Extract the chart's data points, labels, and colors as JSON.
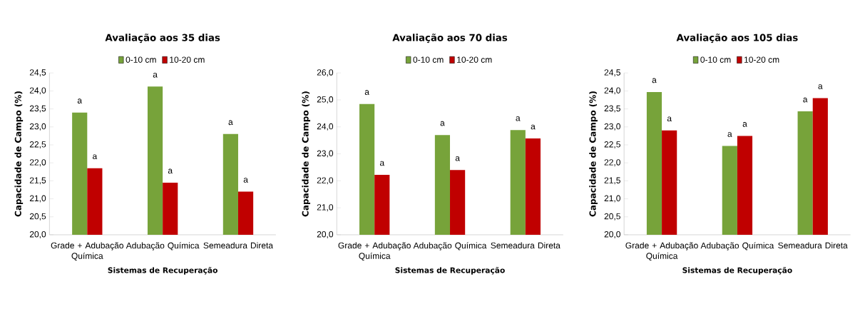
{
  "chart_data": [
    {
      "type": "bar",
      "title": "Avaliação aos 35 dias",
      "xlabel": "Sistemas de Recuperação",
      "ylabel": "Capacidade de Campo (%)",
      "categories": [
        "Grade + Adubação Química",
        "Adubação Química",
        "Semeadura Direta"
      ],
      "series": [
        {
          "name": "0-10 cm",
          "color": "#77a33a",
          "values": [
            23.4,
            24.12,
            22.8
          ],
          "value_labels": [
            "a",
            "a",
            "a"
          ]
        },
        {
          "name": "10-20 cm",
          "color": "#c00000",
          "values": [
            21.85,
            21.45,
            21.2
          ],
          "value_labels": [
            "a",
            "a",
            "a"
          ]
        }
      ],
      "ylim": [
        20,
        24.5
      ],
      "yticks": [
        {
          "value": 20,
          "label": "20,0"
        },
        {
          "value": 20.5,
          "label": "20,5"
        },
        {
          "value": 21,
          "label": "21,0"
        },
        {
          "value": 21.5,
          "label": "21,5"
        },
        {
          "value": 22,
          "label": "22,0"
        },
        {
          "value": 22.5,
          "label": "22,5"
        },
        {
          "value": 23,
          "label": "23,0"
        },
        {
          "value": 23.5,
          "label": "23,5"
        },
        {
          "value": 24,
          "label": "24,0"
        },
        {
          "value": 24.5,
          "label": "24,5"
        }
      ],
      "legend": "top",
      "grid": false
    },
    {
      "type": "bar",
      "title": "Avaliação aos 70 dias",
      "xlabel": "Sistemas de Recuperação",
      "ylabel": "Capacidade de Campo (%)",
      "categories": [
        "Grade + Adubação Química",
        "Adubação Química",
        "Semeadura Direta"
      ],
      "series": [
        {
          "name": "0-10 cm",
          "color": "#77a33a",
          "values": [
            24.85,
            23.7,
            23.88
          ],
          "value_labels": [
            "a",
            "a",
            "a"
          ]
        },
        {
          "name": "10-20 cm",
          "color": "#c00000",
          "values": [
            22.22,
            22.4,
            23.57
          ],
          "value_labels": [
            "a",
            "a",
            "a"
          ]
        }
      ],
      "ylim": [
        20,
        26
      ],
      "yticks": [
        {
          "value": 20,
          "label": "20,0"
        },
        {
          "value": 21,
          "label": "21,0"
        },
        {
          "value": 22,
          "label": "22,0"
        },
        {
          "value": 23,
          "label": "23,0"
        },
        {
          "value": 24,
          "label": "24,0"
        },
        {
          "value": 25,
          "label": "25,0"
        },
        {
          "value": 26,
          "label": "26,0"
        }
      ],
      "legend": "top",
      "grid": false
    },
    {
      "type": "bar",
      "title": "Avaliação aos 105 dias",
      "xlabel": "Sistemas de Recuperação",
      "ylabel": "Capacidade de Campo (%)",
      "categories": [
        "Grade + Adubação Química",
        "Adubação Química",
        "Semeadura Direta"
      ],
      "series": [
        {
          "name": "0-10 cm",
          "color": "#77a33a",
          "values": [
            23.97,
            22.47,
            23.43
          ],
          "value_labels": [
            "a",
            "a",
            "a"
          ]
        },
        {
          "name": "10-20 cm",
          "color": "#c00000",
          "values": [
            22.9,
            22.75,
            23.8
          ],
          "value_labels": [
            "a",
            "a",
            "a"
          ]
        }
      ],
      "ylim": [
        20,
        24.5
      ],
      "yticks": [
        {
          "value": 20,
          "label": "20,0"
        },
        {
          "value": 20.5,
          "label": "20,5"
        },
        {
          "value": 21,
          "label": "21,0"
        },
        {
          "value": 21.5,
          "label": "21,5"
        },
        {
          "value": 22,
          "label": "22,0"
        },
        {
          "value": 22.5,
          "label": "22,5"
        },
        {
          "value": 23,
          "label": "23,0"
        },
        {
          "value": 23.5,
          "label": "23,5"
        },
        {
          "value": 24,
          "label": "24,0"
        },
        {
          "value": 24.5,
          "label": "24,5"
        }
      ],
      "legend": "top",
      "grid": false
    }
  ]
}
